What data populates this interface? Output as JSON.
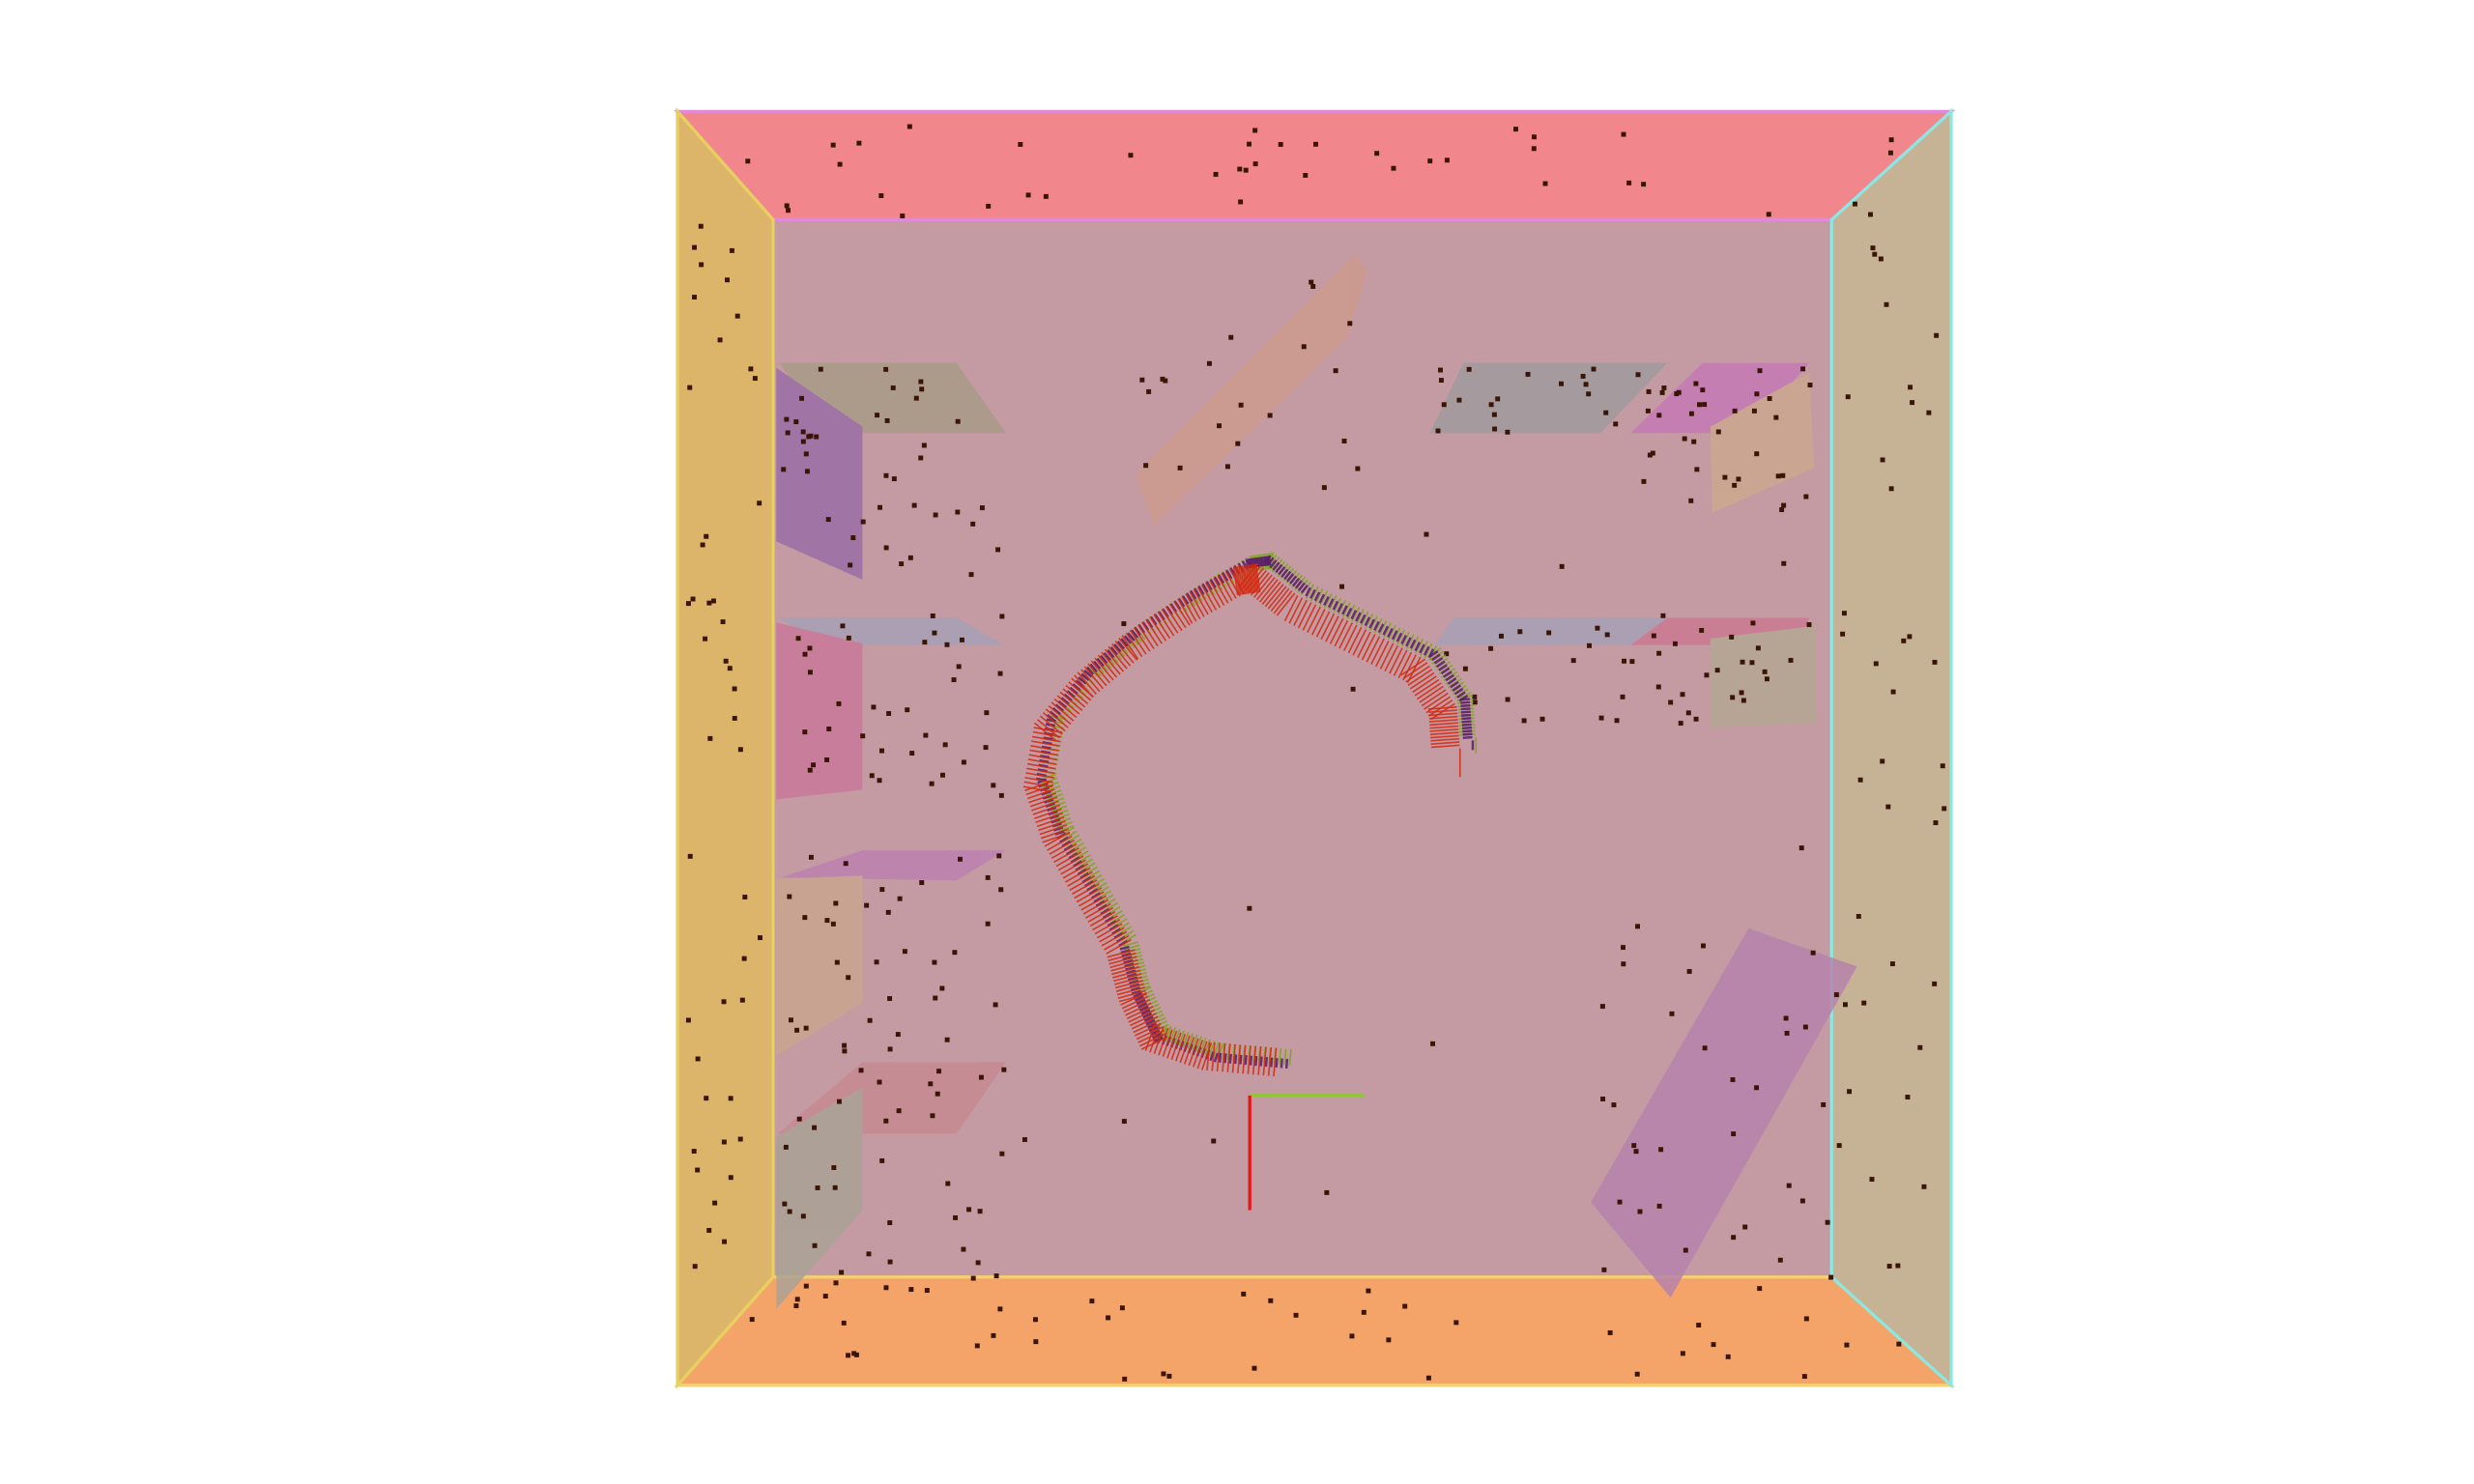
{
  "scene": {
    "colors": {
      "background": "#ffffff",
      "back_wall": "#c49aa3",
      "top_wall": "#f2868d",
      "bottom_wall": "#f4a468",
      "left_wall": "#dcb46a",
      "right_wall": "#c6b396",
      "point": "#3a1506",
      "trajectory_red": "#d42a10",
      "trajectory_green": "#7ba81a",
      "trajectory_purple": "#5a1a6e",
      "axis_red": "#e01818",
      "axis_green": "#8ccc2a"
    },
    "rendering": "3d-room-perspective-with-obstacles-and-trajectory"
  }
}
